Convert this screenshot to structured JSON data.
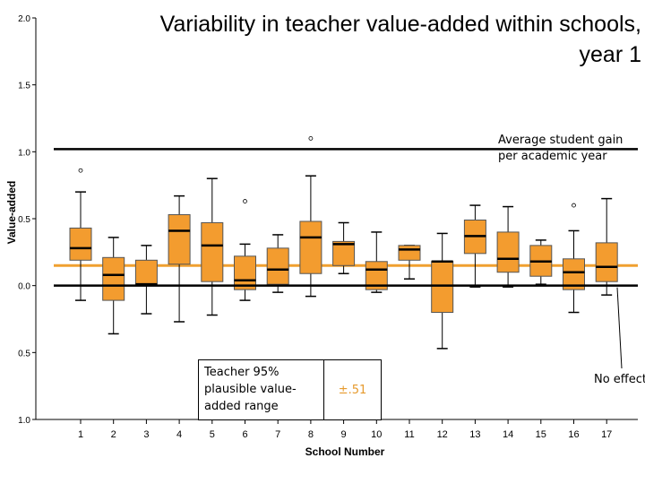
{
  "title_lines": [
    "Variability in teacher value-added within schools,",
    "year 1"
  ],
  "annotations": {
    "average_gain": [
      "Average student gain",
      "per academic year"
    ],
    "no_effect": "No effect",
    "legend_lines": [
      "Teacher 95%",
      "plausible value-",
      "added range"
    ],
    "legend_value": "±.51"
  },
  "colors": {
    "box": "#f39c2f",
    "mean_line": "#f0a030",
    "legend_value": "#e69a2d"
  },
  "chart_data": {
    "type": "boxplot",
    "xlabel": "School Number",
    "ylabel": "Value-added",
    "categories": [
      "1",
      "2",
      "3",
      "4",
      "5",
      "6",
      "7",
      "8",
      "9",
      "10",
      "11",
      "12",
      "13",
      "14",
      "15",
      "16",
      "17"
    ],
    "y_ticks": [
      -1.0,
      -0.5,
      0.0,
      0.5,
      1.0,
      1.5,
      2.0
    ],
    "y_tick_labels": [
      "1.0",
      "0.5",
      "0.0",
      "0.5",
      "1.0",
      "1.5",
      "2.0"
    ],
    "ylim": [
      -1.0,
      2.0
    ],
    "reference_lines": [
      {
        "label": "Average student gain per academic year",
        "y": 1.02,
        "color": "#000000"
      },
      {
        "label": "No effect",
        "y": 0.0,
        "color": "#000000"
      },
      {
        "label": "mean",
        "y": 0.15,
        "color": "#f0a030"
      }
    ],
    "boxes": [
      {
        "category": "1",
        "whisker_low": -0.11,
        "q1": 0.19,
        "median": 0.28,
        "q3": 0.43,
        "whisker_high": 0.7,
        "outliers": [
          0.86
        ]
      },
      {
        "category": "2",
        "whisker_low": -0.36,
        "q1": -0.11,
        "median": 0.08,
        "q3": 0.21,
        "whisker_high": 0.36,
        "outliers": []
      },
      {
        "category": "3",
        "whisker_low": -0.21,
        "q1": 0.01,
        "median": 0.01,
        "q3": 0.19,
        "whisker_high": 0.3,
        "outliers": []
      },
      {
        "category": "4",
        "whisker_low": -0.27,
        "q1": 0.16,
        "median": 0.41,
        "q3": 0.53,
        "whisker_high": 0.67,
        "outliers": []
      },
      {
        "category": "5",
        "whisker_low": -0.22,
        "q1": 0.03,
        "median": 0.3,
        "q3": 0.47,
        "whisker_high": 0.8,
        "outliers": []
      },
      {
        "category": "6",
        "whisker_low": -0.11,
        "q1": -0.03,
        "median": 0.04,
        "q3": 0.22,
        "whisker_high": 0.31,
        "outliers": [
          0.63
        ]
      },
      {
        "category": "7",
        "whisker_low": -0.05,
        "q1": 0.01,
        "median": 0.12,
        "q3": 0.28,
        "whisker_high": 0.38,
        "outliers": []
      },
      {
        "category": "8",
        "whisker_low": -0.08,
        "q1": 0.09,
        "median": 0.36,
        "q3": 0.48,
        "whisker_high": 0.82,
        "outliers": [
          1.1
        ]
      },
      {
        "category": "9",
        "whisker_low": 0.09,
        "q1": 0.15,
        "median": 0.31,
        "q3": 0.33,
        "whisker_high": 0.47,
        "outliers": []
      },
      {
        "category": "10",
        "whisker_low": -0.05,
        "q1": -0.03,
        "median": 0.12,
        "q3": 0.18,
        "whisker_high": 0.4,
        "outliers": []
      },
      {
        "category": "11",
        "whisker_low": 0.05,
        "q1": 0.19,
        "median": 0.27,
        "q3": 0.3,
        "whisker_high": 0.3,
        "outliers": []
      },
      {
        "category": "12",
        "whisker_low": -0.47,
        "q1": -0.2,
        "median": 0.18,
        "q3": 0.18,
        "whisker_high": 0.39,
        "outliers": []
      },
      {
        "category": "13",
        "whisker_low": -0.01,
        "q1": 0.24,
        "median": 0.37,
        "q3": 0.49,
        "whisker_high": 0.6,
        "outliers": []
      },
      {
        "category": "14",
        "whisker_low": -0.01,
        "q1": 0.1,
        "median": 0.2,
        "q3": 0.4,
        "whisker_high": 0.59,
        "outliers": []
      },
      {
        "category": "15",
        "whisker_low": 0.01,
        "q1": 0.07,
        "median": 0.18,
        "q3": 0.3,
        "whisker_high": 0.34,
        "outliers": []
      },
      {
        "category": "16",
        "whisker_low": -0.2,
        "q1": -0.03,
        "median": 0.1,
        "q3": 0.2,
        "whisker_high": 0.41,
        "outliers": [
          0.6
        ]
      },
      {
        "category": "17",
        "whisker_low": -0.07,
        "q1": 0.03,
        "median": 0.14,
        "q3": 0.32,
        "whisker_high": 0.65,
        "outliers": []
      }
    ]
  }
}
